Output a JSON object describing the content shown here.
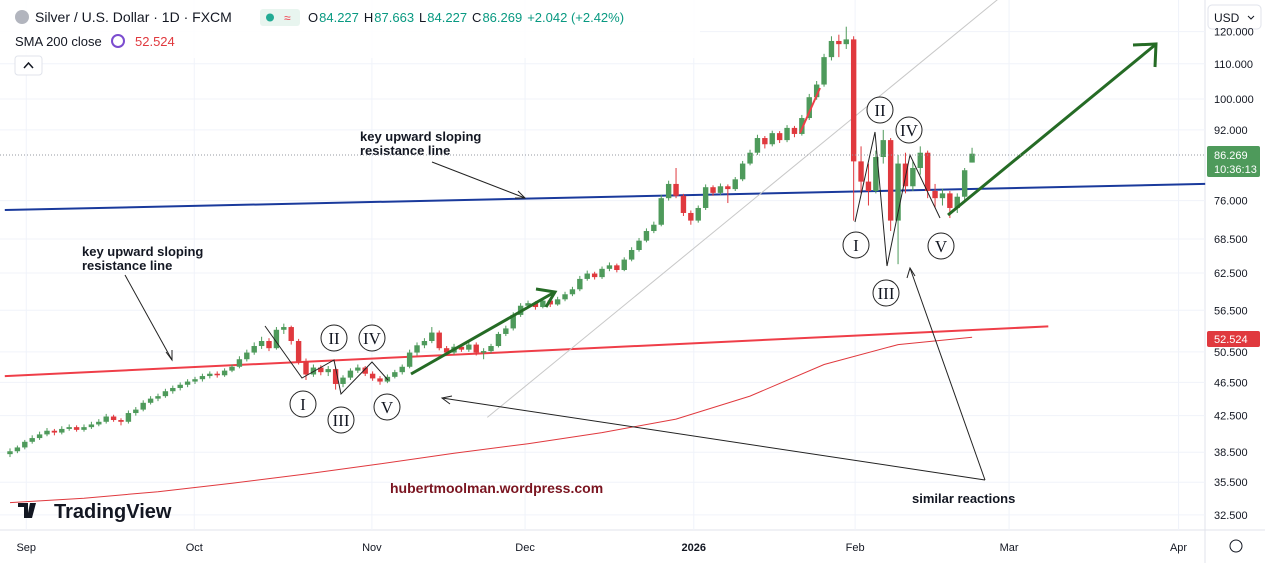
{
  "chart_data": {
    "type": "candlestick",
    "title": "Silver / U.S. Dollar · 1D · FXCM",
    "ohlc_header": [
      {
        "label": "O",
        "value": 84.227
      },
      {
        "label": "H",
        "value": 87.663
      },
      {
        "label": "L",
        "value": 84.227
      },
      {
        "label": "C",
        "value": 86.269
      }
    ],
    "change": "+2.042 (+2.42%)",
    "currency": "USD",
    "countdown": "10:36:13",
    "brand": "TradingView",
    "watermark": "hubertmoolman.wordpress.com",
    "up_color": "#4e9a5b",
    "down_color": "#e0393e",
    "log_scale": true,
    "ylim": [
      31.2,
      130.7
    ],
    "yticks": [
      {
        "value": 32.5,
        "label": "32.500"
      },
      {
        "value": 35.5,
        "label": "35.500"
      },
      {
        "value": 38.5,
        "label": "38.500"
      },
      {
        "value": 42.5,
        "label": "42.500"
      },
      {
        "value": 46.5,
        "label": "46.500"
      },
      {
        "value": 50.5,
        "label": "50.500"
      },
      {
        "value": 56.5,
        "label": "56.500"
      },
      {
        "value": 62.5,
        "label": "62.500"
      },
      {
        "value": 68.5,
        "label": "68.500"
      },
      {
        "value": 76,
        "label": "76.000"
      },
      {
        "value": 92,
        "label": "92.000"
      },
      {
        "value": 100,
        "label": "100.000"
      },
      {
        "value": 110,
        "label": "110.000"
      },
      {
        "value": 120,
        "label": "120.000"
      }
    ],
    "xlim": [
      -1.35,
      160.8
    ],
    "xticks": [
      {
        "value": 2.2,
        "label": "Sep"
      },
      {
        "value": 24.9,
        "label": "Oct"
      },
      {
        "value": 48.9,
        "label": "Nov"
      },
      {
        "value": 69.6,
        "label": "Dec"
      },
      {
        "value": 92.4,
        "label": "2026"
      },
      {
        "value": 114.2,
        "label": "Feb"
      },
      {
        "value": 135,
        "label": "Mar"
      },
      {
        "value": 157.9,
        "label": "Apr"
      }
    ],
    "candles": [
      [
        38.3,
        38.9,
        38.0,
        38.6
      ],
      [
        38.6,
        39.2,
        38.4,
        39.0
      ],
      [
        39.0,
        39.8,
        38.8,
        39.6
      ],
      [
        39.6,
        40.3,
        39.4,
        40.0
      ],
      [
        40.0,
        40.7,
        39.8,
        40.4
      ],
      [
        40.4,
        41.1,
        40.2,
        40.8
      ],
      [
        40.8,
        41.0,
        40.3,
        40.6
      ],
      [
        40.6,
        41.3,
        40.4,
        41.0
      ],
      [
        41.0,
        41.5,
        40.8,
        41.2
      ],
      [
        41.2,
        41.4,
        40.7,
        40.9
      ],
      [
        40.9,
        41.5,
        40.7,
        41.2
      ],
      [
        41.2,
        41.8,
        41.0,
        41.5
      ],
      [
        41.5,
        42.1,
        41.3,
        41.8
      ],
      [
        41.8,
        42.7,
        41.6,
        42.4
      ],
      [
        42.4,
        42.6,
        41.8,
        42.0
      ],
      [
        42.0,
        42.2,
        41.4,
        41.8
      ],
      [
        41.8,
        43.1,
        41.6,
        42.8
      ],
      [
        42.8,
        43.5,
        42.5,
        43.2
      ],
      [
        43.2,
        44.3,
        43.0,
        44.0
      ],
      [
        44.0,
        44.8,
        43.8,
        44.5
      ],
      [
        44.5,
        45.1,
        44.2,
        44.8
      ],
      [
        44.8,
        45.7,
        44.6,
        45.4
      ],
      [
        45.4,
        46.1,
        45.1,
        45.8
      ],
      [
        45.8,
        46.5,
        45.5,
        46.2
      ],
      [
        46.2,
        46.9,
        45.9,
        46.6
      ],
      [
        46.6,
        47.2,
        46.3,
        46.9
      ],
      [
        46.9,
        47.6,
        46.6,
        47.3
      ],
      [
        47.3,
        47.9,
        47.0,
        47.6
      ],
      [
        47.6,
        47.9,
        47.1,
        47.4
      ],
      [
        47.4,
        48.3,
        47.2,
        48.0
      ],
      [
        48.0,
        48.8,
        47.8,
        48.5
      ],
      [
        48.5,
        49.9,
        48.3,
        49.5
      ],
      [
        49.5,
        50.8,
        49.2,
        50.4
      ],
      [
        50.4,
        51.8,
        50.1,
        51.3
      ],
      [
        51.3,
        52.6,
        50.9,
        52.0
      ],
      [
        52.0,
        52.4,
        50.6,
        51.0
      ],
      [
        51.0,
        54.0,
        50.8,
        53.6
      ],
      [
        53.6,
        54.5,
        53.0,
        54.0
      ],
      [
        54.0,
        54.2,
        51.5,
        52.0
      ],
      [
        52.0,
        52.3,
        48.8,
        49.2
      ],
      [
        49.2,
        49.6,
        46.8,
        47.5
      ],
      [
        47.5,
        48.8,
        47.2,
        48.4
      ],
      [
        48.4,
        48.7,
        47.4,
        47.8
      ],
      [
        47.8,
        48.6,
        47.3,
        48.2
      ],
      [
        48.2,
        48.4,
        45.6,
        46.3
      ],
      [
        46.3,
        47.4,
        45.9,
        47.1
      ],
      [
        47.1,
        48.3,
        46.8,
        48.0
      ],
      [
        48.0,
        48.8,
        47.7,
        48.4
      ],
      [
        48.4,
        48.6,
        47.3,
        47.6
      ],
      [
        47.6,
        47.9,
        46.7,
        47.0
      ],
      [
        47.0,
        47.3,
        46.2,
        46.6
      ],
      [
        46.6,
        47.5,
        46.4,
        47.2
      ],
      [
        47.2,
        48.1,
        47.0,
        47.8
      ],
      [
        47.8,
        48.8,
        47.5,
        48.5
      ],
      [
        48.5,
        50.8,
        48.3,
        50.4
      ],
      [
        50.4,
        51.8,
        50.0,
        51.4
      ],
      [
        51.4,
        52.4,
        51.0,
        52.0
      ],
      [
        52.0,
        54.0,
        51.7,
        53.2
      ],
      [
        53.2,
        53.5,
        50.7,
        51.0
      ],
      [
        51.0,
        51.3,
        50.0,
        50.4
      ],
      [
        50.4,
        51.6,
        50.1,
        51.2
      ],
      [
        51.2,
        51.5,
        50.5,
        50.8
      ],
      [
        50.8,
        51.9,
        50.5,
        51.5
      ],
      [
        51.5,
        51.8,
        50.0,
        50.4
      ],
      [
        50.4,
        51.0,
        49.5,
        50.6
      ],
      [
        50.6,
        51.6,
        50.3,
        51.3
      ],
      [
        51.3,
        53.3,
        51.1,
        53.0
      ],
      [
        53.0,
        54.2,
        52.7,
        53.8
      ],
      [
        53.8,
        56.2,
        53.5,
        55.8
      ],
      [
        55.8,
        57.6,
        55.5,
        57.2
      ],
      [
        57.2,
        58.0,
        56.8,
        57.6
      ],
      [
        57.6,
        57.9,
        56.6,
        57.0
      ],
      [
        57.0,
        58.4,
        56.8,
        58.0
      ],
      [
        58.0,
        58.3,
        57.0,
        57.4
      ],
      [
        57.4,
        58.6,
        57.2,
        58.2
      ],
      [
        58.2,
        59.4,
        57.9,
        59.0
      ],
      [
        59.0,
        60.2,
        58.7,
        59.8
      ],
      [
        59.8,
        62.0,
        59.5,
        61.5
      ],
      [
        61.5,
        62.9,
        61.2,
        62.4
      ],
      [
        62.4,
        62.7,
        61.4,
        61.8
      ],
      [
        61.8,
        63.6,
        61.5,
        63.2
      ],
      [
        63.2,
        64.3,
        62.8,
        63.8
      ],
      [
        63.8,
        64.1,
        62.6,
        63.0
      ],
      [
        63.0,
        65.2,
        62.8,
        64.8
      ],
      [
        64.8,
        67.0,
        64.5,
        66.5
      ],
      [
        66.5,
        68.7,
        66.2,
        68.2
      ],
      [
        68.2,
        70.5,
        67.9,
        70.0
      ],
      [
        70.0,
        71.8,
        69.6,
        71.2
      ],
      [
        71.2,
        77.2,
        70.9,
        76.5
      ],
      [
        76.5,
        80.2,
        76.0,
        79.5
      ],
      [
        79.5,
        83.0,
        76.5,
        77.0
      ],
      [
        77.0,
        77.4,
        72.9,
        73.5
      ],
      [
        73.5,
        74.0,
        71.2,
        72.0
      ],
      [
        72.0,
        75.0,
        71.6,
        74.5
      ],
      [
        74.5,
        79.4,
        74.1,
        78.8
      ],
      [
        78.8,
        79.2,
        77.0,
        77.6
      ],
      [
        77.6,
        79.6,
        77.2,
        79.0
      ],
      [
        79.0,
        79.4,
        75.5,
        78.4
      ],
      [
        78.4,
        81.0,
        78.0,
        80.5
      ],
      [
        80.5,
        84.6,
        80.1,
        84.0
      ],
      [
        84.0,
        87.2,
        83.6,
        86.5
      ],
      [
        86.5,
        90.8,
        86.0,
        90.0
      ],
      [
        90.0,
        90.5,
        87.5,
        88.5
      ],
      [
        88.5,
        91.8,
        88.0,
        91.2
      ],
      [
        91.2,
        91.7,
        88.8,
        89.5
      ],
      [
        89.5,
        93.2,
        89.0,
        92.5
      ],
      [
        92.5,
        93.0,
        90.2,
        91.0
      ],
      [
        91.0,
        95.8,
        90.6,
        95.0
      ],
      [
        95.0,
        101.4,
        94.5,
        100.5
      ],
      [
        100.5,
        105.0,
        99.8,
        104.0
      ],
      [
        104.0,
        113.0,
        103.4,
        112.0
      ],
      [
        112.0,
        118.5,
        111.0,
        117.0
      ],
      [
        117.0,
        119.0,
        112.0,
        116.0
      ],
      [
        116.0,
        121.6,
        114.5,
        117.5
      ],
      [
        117.5,
        118.5,
        72.0,
        84.5
      ],
      [
        84.5,
        88.0,
        77.5,
        80.0
      ],
      [
        80.0,
        84.0,
        75.0,
        78.0
      ],
      [
        78.0,
        87.0,
        77.5,
        85.5
      ],
      [
        85.5,
        92.0,
        84.0,
        89.5
      ],
      [
        89.5,
        90.0,
        70.0,
        72.0
      ],
      [
        72.0,
        86.0,
        64.0,
        84.0
      ],
      [
        84.0,
        86.5,
        77.5,
        79.0
      ],
      [
        79.0,
        84.5,
        78.0,
        83.0
      ],
      [
        83.0,
        88.0,
        81.5,
        86.5
      ],
      [
        86.5,
        87.0,
        76.5,
        78.0
      ],
      [
        78.0,
        79.5,
        74.5,
        76.5
      ],
      [
        76.5,
        78.5,
        75.0,
        77.5
      ],
      [
        77.5,
        78.0,
        72.5,
        74.5
      ],
      [
        74.5,
        77.5,
        73.5,
        76.8
      ],
      [
        76.8,
        83.0,
        76.0,
        82.5
      ],
      [
        84.227,
        87.663,
        84.227,
        86.269
      ]
    ],
    "sma": {
      "name": "SMA 200 close",
      "color": "#e0393e",
      "x": [
        0,
        10,
        20,
        30,
        40,
        50,
        60,
        70,
        80,
        90,
        100,
        110,
        120,
        130
      ],
      "values": [
        33.6,
        34.0,
        34.6,
        35.4,
        36.3,
        37.3,
        38.4,
        39.4,
        40.6,
        42.1,
        44.8,
        48.8,
        51.5,
        52.524
      ]
    },
    "trendlines": [
      {
        "color": "#1a3a9c",
        "x": [
          -0.7,
          161.5
        ],
        "values": [
          74.1,
          79.5
        ]
      },
      {
        "color": "#ef3e48",
        "x": [
          -0.7,
          140.3
        ],
        "values": [
          47.3,
          54.1
        ]
      },
      {
        "color": "#c8c8c8",
        "x": [
          64.5,
          133.5
        ],
        "values": [
          42.3,
          131
        ]
      }
    ],
    "annotations": [
      "key upward sloping\nresistance line",
      "key upward sloping\nresistance line",
      "similar reactions"
    ],
    "wave_labels": [
      "I",
      "II",
      "III",
      "IV",
      "V",
      "I",
      "II",
      "III",
      "IV",
      "V"
    ]
  }
}
